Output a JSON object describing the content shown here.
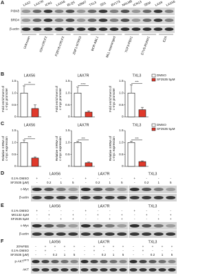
{
  "panel_a": {
    "label": "A",
    "lanes": [
      "LAX2",
      "LAX7R",
      "ICN1",
      "LAX56",
      "BLQ5",
      "KBM7",
      "TXL3",
      "SD1",
      "BV173",
      "NALM6",
      "ICN13",
      "SEM",
      "LAX9",
      "LAX56"
    ],
    "rows": [
      "PI3Kδ",
      "BRD4",
      "β-actin"
    ],
    "groups": [
      "Unknown",
      "IGH-CRLF2",
      "P2RY8-CRLF2",
      "ZNF1-NTRK3",
      "BCR-ABL1",
      "MLL rearranged",
      "TCF3-PBX1",
      "ETV6-RUNX1",
      "E2A"
    ]
  },
  "chart_data": [
    {
      "type": "bar",
      "panel": "B",
      "title": "LAX56",
      "ylabel": [
        "Fold enrichment of",
        "c-myc promoter"
      ],
      "significance": "**",
      "categories": [
        null
      ],
      "ylim": [
        0,
        1.5
      ],
      "yticks": [
        0,
        0.5,
        {
          "value": 1,
          "label": "1.0"
        },
        1.5
      ],
      "series": [
        {
          "color": "#ffffff",
          "values": [
            1.0
          ],
          "errors": [
            0.3
          ]
        },
        {
          "color": "#e0392b",
          "values": [
            0.35
          ],
          "errors": [
            0.15
          ]
        }
      ]
    },
    {
      "type": "bar",
      "title": "LAX7R",
      "ylabel": [
        "Fold enrichment of",
        "c-myc promoter"
      ],
      "significance": "****",
      "categories": [
        null
      ],
      "ylim": [
        0,
        1.5
      ],
      "yticks": [
        0,
        0.5,
        {
          "value": 1,
          "label": "1.0"
        },
        1.5
      ],
      "series": [
        {
          "color": "#ffffff",
          "values": [
            1.0
          ],
          "errors": [
            0.25
          ]
        },
        {
          "color": "#e0392b",
          "values": [
            0.2
          ],
          "errors": [
            0.05
          ]
        }
      ]
    },
    {
      "type": "bar",
      "title": "TXL3",
      "ylabel": [
        "Fold enrichment of",
        "c-myc promoter"
      ],
      "significance": "***",
      "legend": "right",
      "categories": [
        null
      ],
      "ylim": [
        0,
        1.5
      ],
      "yticks": [
        0,
        0.5,
        {
          "value": 1,
          "label": "1.0"
        },
        1.5
      ],
      "series": [
        {
          "name": "DMSO",
          "color": "#ffffff",
          "values": [
            1.0
          ],
          "errors": [
            0.35
          ]
        },
        {
          "name": "SF2535 5μM",
          "color": "#e0392b",
          "values": [
            0.3
          ],
          "errors": [
            0.1
          ]
        }
      ]
    },
    {
      "type": "bar",
      "panel": "C",
      "title": "LAX56",
      "ylabel": [
        "Relative mRNA of",
        "c-myc expression"
      ],
      "significance": "***",
      "categories": [
        null
      ],
      "ylim": [
        0,
        1.5
      ],
      "yticks": [
        0,
        0.5,
        {
          "value": 1,
          "label": "1.0"
        },
        1.5
      ],
      "series": [
        {
          "color": "#ffffff",
          "values": [
            1.0
          ],
          "errors": [
            0.1
          ]
        },
        {
          "color": "#e0392b",
          "values": [
            0.35
          ],
          "errors": [
            0.05
          ]
        }
      ]
    },
    {
      "type": "bar",
      "title": "LAX7R",
      "ylabel": [
        "Relative mRNA of",
        "c-myc expression"
      ],
      "significance": "***",
      "categories": [
        null
      ],
      "ylim": [
        0,
        1.5
      ],
      "yticks": [
        0,
        0.5,
        {
          "value": 1,
          "label": "1.0"
        },
        1.5
      ],
      "series": [
        {
          "color": "#ffffff",
          "values": [
            1.0
          ],
          "errors": [
            0.05
          ]
        },
        {
          "color": "#e0392b",
          "values": [
            0.15
          ],
          "errors": [
            0.03
          ]
        }
      ]
    },
    {
      "type": "bar",
      "title": "TXL3",
      "ylabel": [
        "Relative mRNA of",
        "c-myc expression"
      ],
      "significance": "***",
      "legend": "right",
      "categories": [
        null
      ],
      "ylim": [
        0,
        1.5
      ],
      "yticks": [
        0,
        0.5,
        {
          "value": 1,
          "label": "1.0"
        },
        1.5
      ],
      "series": [
        {
          "name": "DMSO",
          "color": "#ffffff",
          "values": [
            1.0
          ],
          "errors": [
            0.05
          ]
        },
        {
          "name": "SF2535 5μM",
          "color": "#e0392b",
          "values": [
            0.2
          ],
          "errors": [
            0.03
          ]
        }
      ]
    }
  ],
  "blots": [
    {
      "label": "D",
      "groups": [
        "LAX56",
        "LAX7R",
        "TXL3"
      ],
      "conditions": [
        {
          "name": "0.1% DMSO",
          "marks": [
            "+",
            "-",
            "-",
            "-",
            "+",
            "-",
            "-",
            "-",
            "+",
            "-",
            "-",
            "-"
          ]
        },
        {
          "name": "SF2535 (μM)",
          "marks": [
            "-",
            "0.2",
            "1",
            "5",
            "-",
            "0.2",
            "1",
            "5",
            "-",
            "0.2",
            "1",
            "5"
          ]
        }
      ],
      "rows": [
        "c-Myc",
        "β-actin"
      ]
    },
    {
      "label": "E",
      "groups": [
        "LAX56",
        "LAX7R",
        "TXL3"
      ],
      "conditions": [
        {
          "name": "0.1% DMSO",
          "marks": [
            "+",
            "-",
            "-",
            "-",
            "+",
            "-",
            "-",
            "-",
            "+",
            "-",
            "-",
            "-"
          ]
        },
        {
          "name": "MG132 4μM",
          "marks": [
            "-",
            "+",
            "-",
            "+",
            "-",
            "+",
            "-",
            "+",
            "-",
            "+",
            "-",
            "+"
          ]
        },
        {
          "name": "SF2535 5μM",
          "marks": [
            "-",
            "-",
            "+",
            "+",
            "-",
            "-",
            "+",
            "+",
            "-",
            "-",
            "+",
            "+"
          ]
        }
      ],
      "rows": [
        "c-Myc",
        "β-actin"
      ]
    },
    {
      "label": "F",
      "groups": [
        "LAX56",
        "LAX7R",
        "TXL3"
      ],
      "conditions": [
        {
          "name": "20%FBS",
          "marks": [
            "-",
            "+",
            "+",
            "+",
            "+",
            "-",
            "+",
            "+",
            "+",
            "+",
            "-",
            "+",
            "+",
            "+",
            "+"
          ]
        },
        {
          "name": "0.1% DMSO",
          "marks": [
            "-",
            "+",
            "-",
            "-",
            "-",
            "-",
            "+",
            "-",
            "-",
            "-",
            "-",
            "+",
            "-",
            "-",
            "-"
          ]
        },
        {
          "name": "SF2535 (μM)",
          "marks": [
            "-",
            "-",
            "0.2",
            "1",
            "5",
            "-",
            "-",
            "0.2",
            "1",
            "5",
            "-",
            "-",
            "0.2",
            "1",
            "5"
          ]
        }
      ],
      "rows": [
        {
          "text": "p-AKT",
          "sup": "S473"
        },
        "AKT"
      ]
    }
  ]
}
